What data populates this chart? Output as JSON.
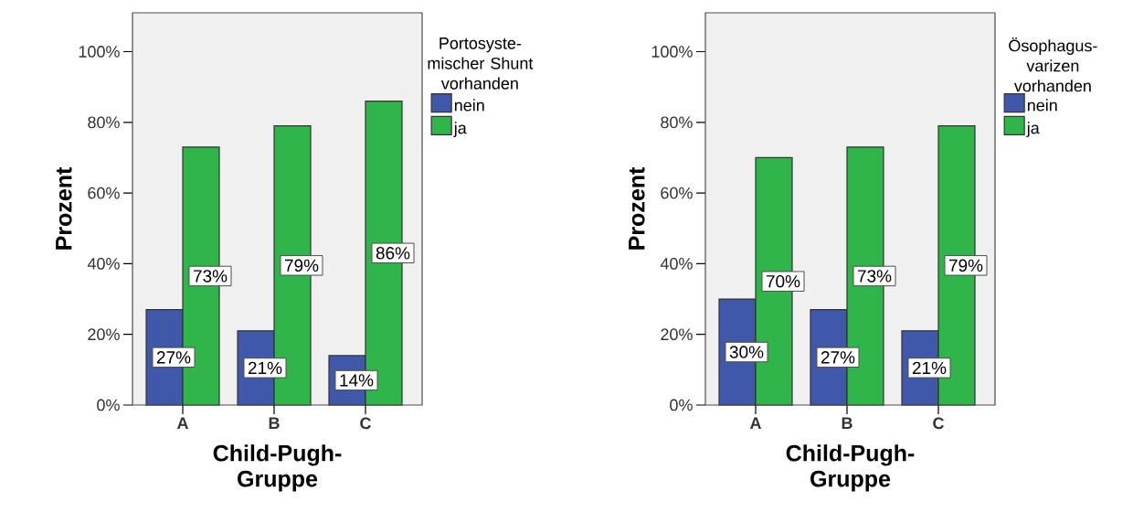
{
  "chart_data": [
    {
      "type": "bar",
      "categories": [
        "A",
        "B",
        "C"
      ],
      "xlabel": "Child-Pugh-Gruppe",
      "ylabel": "Prozent",
      "legend_title": "Portosyste-mischer Shunt vorhanden",
      "legend": "right",
      "ylim": [
        0,
        111
      ],
      "yticks": [
        {
          "value": 0,
          "label": "0%"
        },
        {
          "value": 20,
          "label": "20%"
        },
        {
          "value": 40,
          "label": "40%"
        },
        {
          "value": 60,
          "label": "60%"
        },
        {
          "value": 80,
          "label": "80%"
        },
        {
          "value": 100,
          "label": "100%"
        }
      ],
      "series": [
        {
          "name": "nein",
          "color": "#3f58aa",
          "values": [
            27,
            21,
            14
          ],
          "value_labels": [
            "27%",
            "21%",
            "14%"
          ]
        },
        {
          "name": "ja",
          "color": "#2fb54a",
          "values": [
            73,
            79,
            86
          ],
          "value_labels": [
            "73%",
            "79%",
            "86%"
          ]
        }
      ]
    },
    {
      "type": "bar",
      "categories": [
        "A",
        "B",
        "C"
      ],
      "xlabel": "Child-Pugh-Gruppe",
      "ylabel": "Prozent",
      "legend_title": "Ösophagus-varizen vorhanden",
      "legend": "right",
      "ylim": [
        0,
        111
      ],
      "yticks": [
        {
          "value": 0,
          "label": "0%"
        },
        {
          "value": 20,
          "label": "20%"
        },
        {
          "value": 40,
          "label": "40%"
        },
        {
          "value": 60,
          "label": "60%"
        },
        {
          "value": 80,
          "label": "80%"
        },
        {
          "value": 100,
          "label": "100%"
        }
      ],
      "series": [
        {
          "name": "nein",
          "color": "#3f58aa",
          "values": [
            30,
            27,
            21
          ],
          "value_labels": [
            "30%",
            "27%",
            "21%"
          ]
        },
        {
          "name": "ja",
          "color": "#2fb54a",
          "values": [
            70,
            73,
            79
          ],
          "value_labels": [
            "70%",
            "73%",
            "79%"
          ]
        }
      ]
    }
  ]
}
